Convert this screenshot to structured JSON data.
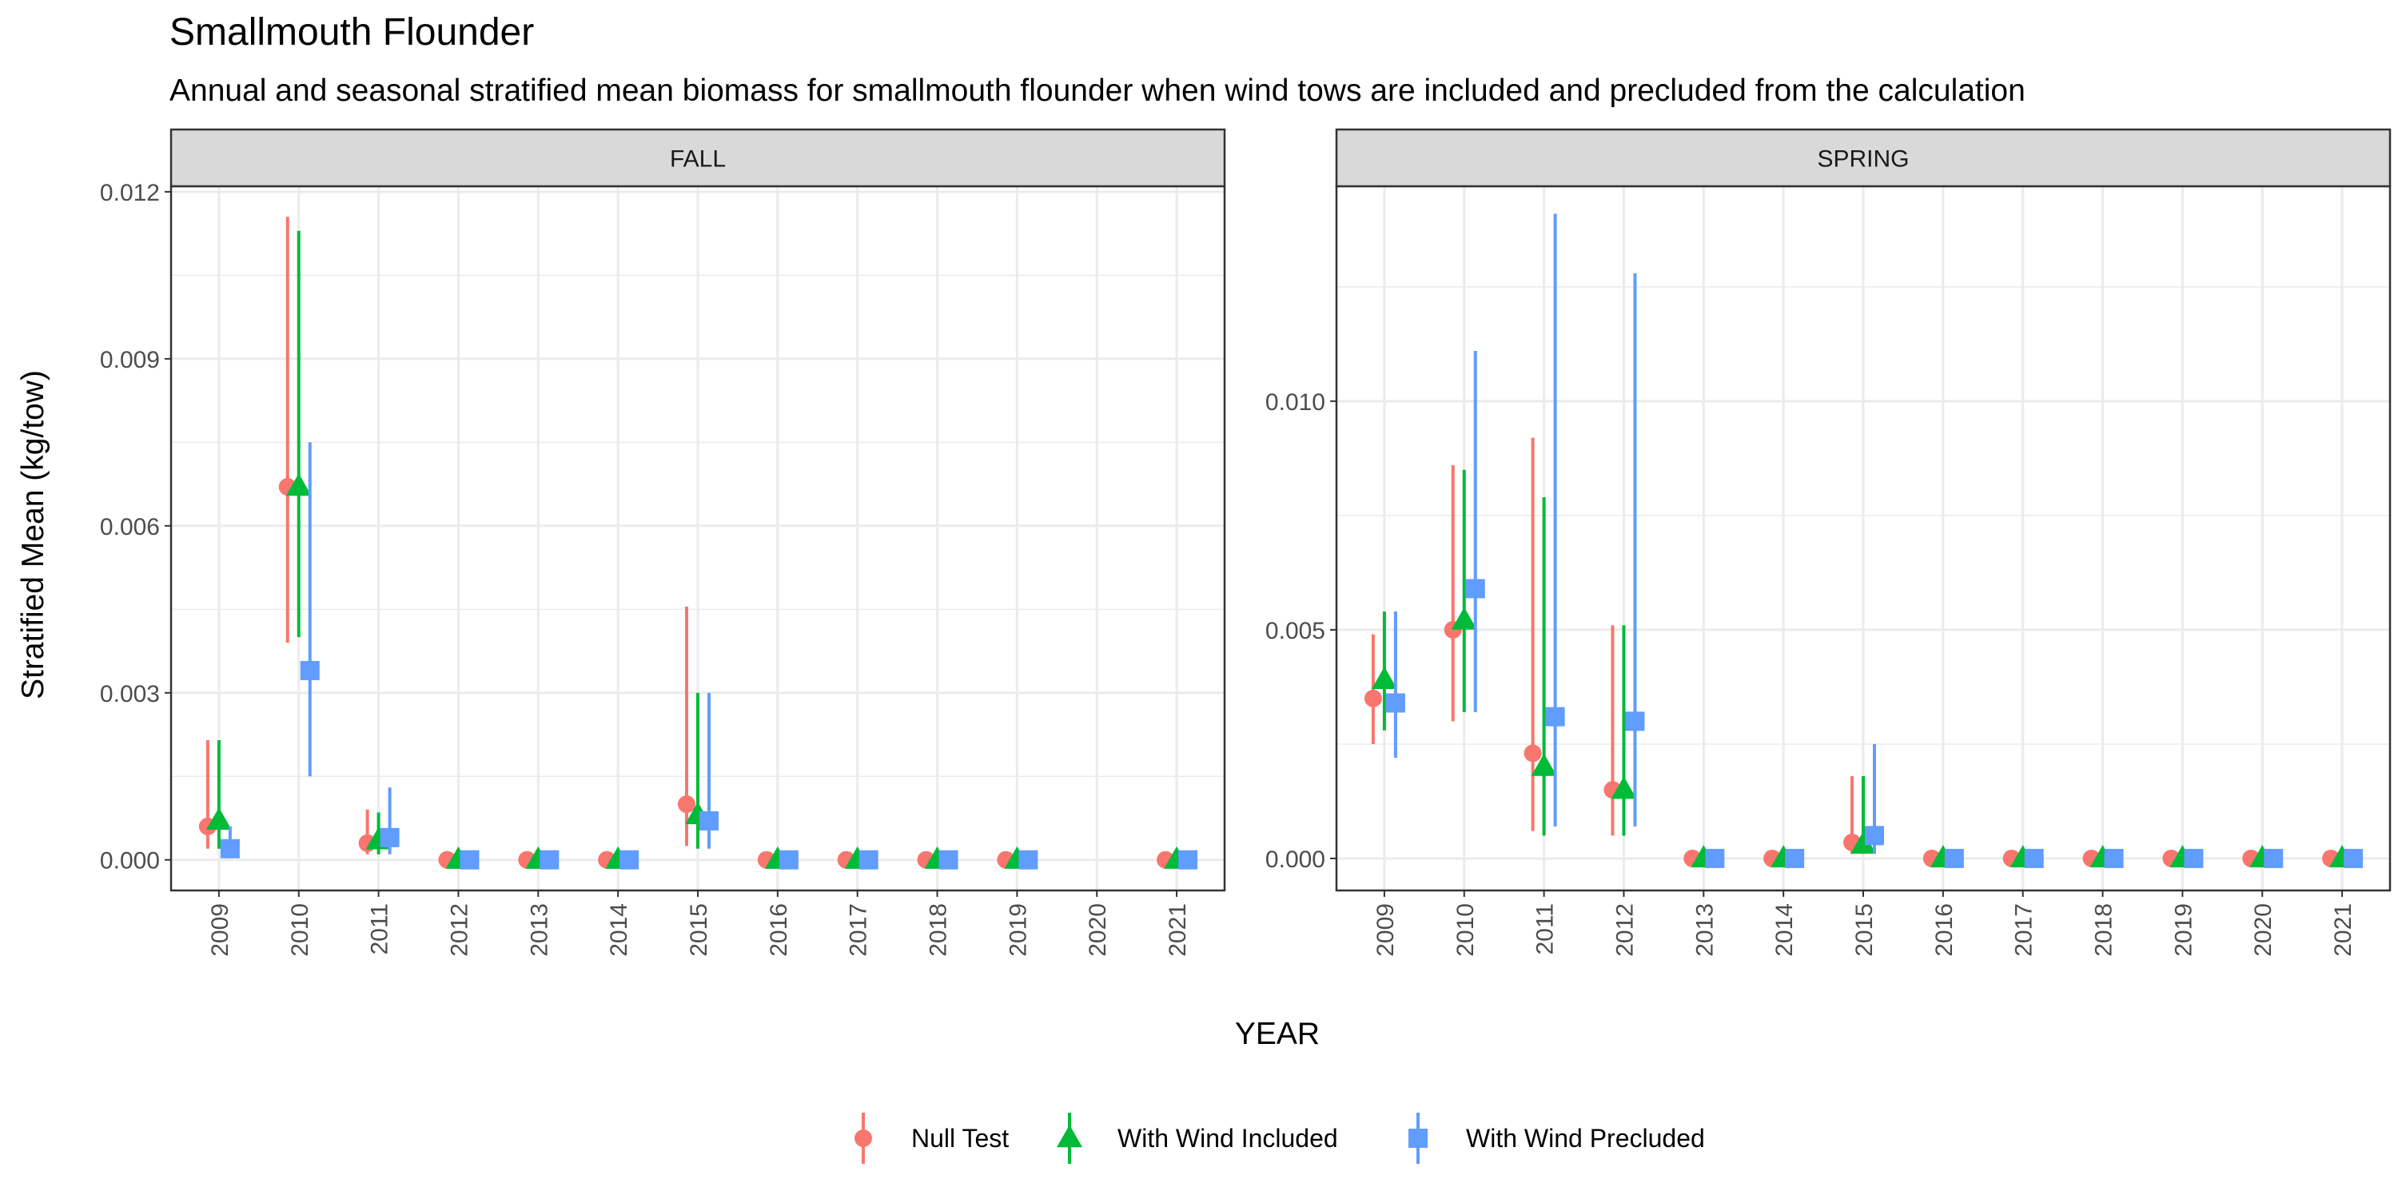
{
  "chart_data": {
    "type": "errorbar-scatter",
    "title": "Smallmouth Flounder",
    "subtitle": "Annual and seasonal stratified mean biomass for smallmouth flounder when wind tows are included and precluded from the calculation",
    "xlabel": "YEAR",
    "ylabel": "Stratified Mean (kg/tow)",
    "grid": true,
    "legend_position": "bottom",
    "categories": [
      "2009",
      "2010",
      "2011",
      "2012",
      "2013",
      "2014",
      "2015",
      "2016",
      "2017",
      "2018",
      "2019",
      "2020",
      "2021"
    ],
    "series_styles": [
      {
        "name": "Null Test",
        "color": "#F8766D",
        "shape": "circle"
      },
      {
        "name": "With Wind Included",
        "color": "#00BA38",
        "shape": "triangle"
      },
      {
        "name": "With Wind Precluded",
        "color": "#619CFF",
        "shape": "square"
      }
    ],
    "panels": [
      {
        "label": "FALL",
        "ylim": [
          -0.00055,
          0.0121
        ],
        "yticks": [
          0.0,
          0.003,
          0.006,
          0.009,
          0.012
        ],
        "ytick_labels": [
          "0.000",
          "0.003",
          "0.006",
          "0.009",
          "0.012"
        ],
        "series": [
          {
            "name": "Null Test",
            "values": [
              0.0006,
              0.0067,
              0.0003,
              0.0,
              0.0,
              0.0,
              0.001,
              0.0,
              0.0,
              0.0,
              0.0,
              null,
              0.0
            ],
            "lower": [
              0.0002,
              0.0039,
              0.0001,
              0.0,
              0.0,
              0.0,
              0.00025,
              0.0,
              0.0,
              0.0,
              0.0,
              null,
              0.0
            ],
            "upper": [
              0.00215,
              0.01155,
              0.0009,
              0.0,
              0.0,
              0.0,
              0.00455,
              0.0,
              0.0,
              0.0,
              0.0,
              null,
              0.0
            ]
          },
          {
            "name": "With Wind Included",
            "values": [
              0.0007,
              0.0067,
              0.00035,
              0.0,
              0.0,
              0.0,
              0.0008,
              0.0,
              0.0,
              0.0,
              0.0,
              null,
              0.0
            ],
            "lower": [
              0.0002,
              0.004,
              0.0001,
              0.0,
              0.0,
              0.0,
              0.0002,
              0.0,
              0.0,
              0.0,
              0.0,
              null,
              0.0
            ],
            "upper": [
              0.00215,
              0.0113,
              0.00085,
              0.0,
              0.0,
              0.0,
              0.003,
              0.0,
              0.0,
              0.0,
              0.0,
              null,
              0.0
            ]
          },
          {
            "name": "With Wind Precluded",
            "values": [
              0.0002,
              0.0034,
              0.0004,
              0.0,
              0.0,
              0.0,
              0.0007,
              0.0,
              0.0,
              0.0,
              0.0,
              null,
              0.0
            ],
            "lower": [
              0.0001,
              0.0015,
              0.0001,
              0.0,
              0.0,
              0.0,
              0.0002,
              0.0,
              0.0,
              0.0,
              0.0,
              null,
              0.0
            ],
            "upper": [
              0.0006,
              0.0075,
              0.0013,
              0.0,
              0.0,
              0.0,
              0.003,
              0.0,
              0.0,
              0.0,
              0.0,
              null,
              0.0
            ]
          }
        ]
      },
      {
        "label": "SPRING",
        "ylim": [
          -0.0007,
          0.0147
        ],
        "yticks": [
          0.0,
          0.005,
          0.01
        ],
        "ytick_labels": [
          "0.000",
          "0.005",
          "0.010"
        ],
        "series": [
          {
            "name": "Null Test",
            "values": [
              0.0035,
              0.005,
              0.0023,
              0.0015,
              0.0,
              0.0,
              0.00035,
              0.0,
              0.0,
              0.0,
              0.0,
              0.0,
              0.0
            ],
            "lower": [
              0.0025,
              0.003,
              0.0006,
              0.0005,
              0.0,
              0.0,
              0.0001,
              0.0,
              0.0,
              0.0,
              0.0,
              0.0,
              0.0
            ],
            "upper": [
              0.0049,
              0.0086,
              0.0092,
              0.0051,
              0.0,
              0.0,
              0.0018,
              0.0,
              0.0,
              0.0,
              0.0,
              0.0,
              0.0
            ]
          },
          {
            "name": "With Wind Included",
            "values": [
              0.0039,
              0.0052,
              0.002,
              0.0015,
              0.0,
              0.0,
              0.0003,
              0.0,
              0.0,
              0.0,
              0.0,
              0.0,
              0.0
            ],
            "lower": [
              0.0028,
              0.0032,
              0.0005,
              0.0005,
              0.0,
              0.0,
              0.0001,
              0.0,
              0.0,
              0.0,
              0.0,
              0.0,
              0.0
            ],
            "upper": [
              0.0054,
              0.0085,
              0.0079,
              0.0051,
              0.0,
              0.0,
              0.0018,
              0.0,
              0.0,
              0.0,
              0.0,
              0.0,
              0.0
            ]
          },
          {
            "name": "With Wind Precluded",
            "values": [
              0.0034,
              0.0059,
              0.0031,
              0.003,
              0.0,
              0.0,
              0.0005,
              0.0,
              0.0,
              0.0,
              0.0,
              0.0,
              0.0
            ],
            "lower": [
              0.0022,
              0.0032,
              0.0007,
              0.0007,
              0.0,
              0.0,
              0.0001,
              0.0,
              0.0,
              0.0,
              0.0,
              0.0,
              0.0
            ],
            "upper": [
              0.0054,
              0.0111,
              0.0141,
              0.0128,
              0.0,
              0.0,
              0.0025,
              0.0,
              0.0,
              0.0,
              0.0,
              0.0,
              0.0
            ]
          }
        ]
      }
    ]
  }
}
